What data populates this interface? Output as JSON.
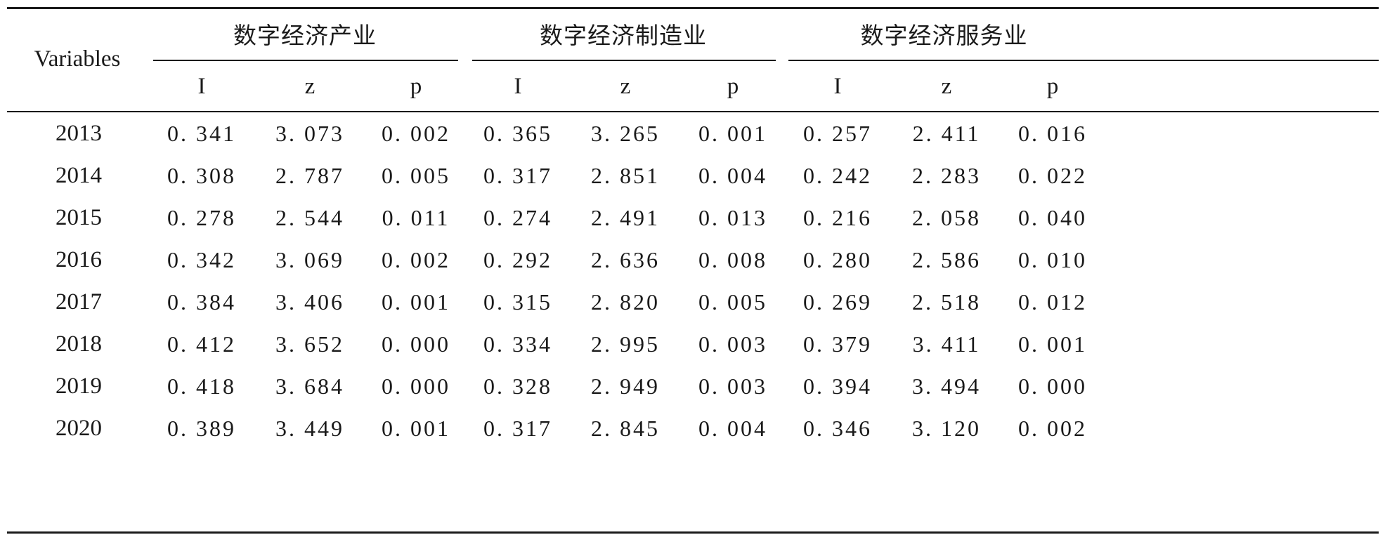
{
  "table": {
    "row_header": "Variables",
    "groups": [
      "数字经济产业",
      "数字经济制造业",
      "数字经济服务业"
    ],
    "subheaders": [
      "I",
      "z",
      "p"
    ],
    "rows": [
      {
        "year": "2013",
        "values": [
          "0. 341",
          "3. 073",
          "0. 002",
          "0. 365",
          "3. 265",
          "0. 001",
          "0. 257",
          "2. 411",
          "0. 016"
        ]
      },
      {
        "year": "2014",
        "values": [
          "0. 308",
          "2. 787",
          "0. 005",
          "0. 317",
          "2. 851",
          "0. 004",
          "0. 242",
          "2. 283",
          "0. 022"
        ]
      },
      {
        "year": "2015",
        "values": [
          "0. 278",
          "2. 544",
          "0. 011",
          "0. 274",
          "2. 491",
          "0. 013",
          "0. 216",
          "2. 058",
          "0. 040"
        ]
      },
      {
        "year": "2016",
        "values": [
          "0. 342",
          "3. 069",
          "0. 002",
          "0. 292",
          "2. 636",
          "0. 008",
          "0. 280",
          "2. 586",
          "0. 010"
        ]
      },
      {
        "year": "2017",
        "values": [
          "0. 384",
          "3. 406",
          "0. 001",
          "0. 315",
          "2. 820",
          "0. 005",
          "0. 269",
          "2. 518",
          "0. 012"
        ]
      },
      {
        "year": "2018",
        "values": [
          "0. 412",
          "3. 652",
          "0. 000",
          "0. 334",
          "2. 995",
          "0. 003",
          "0. 379",
          "3. 411",
          "0. 001"
        ]
      },
      {
        "year": "2019",
        "values": [
          "0. 418",
          "3. 684",
          "0. 000",
          "0. 328",
          "2. 949",
          "0. 003",
          "0. 394",
          "3. 494",
          "0. 000"
        ]
      },
      {
        "year": "2020",
        "values": [
          "0. 389",
          "3. 449",
          "0. 001",
          "0. 317",
          "2. 845",
          "0. 004",
          "0. 346",
          "3. 120",
          "0. 002"
        ]
      }
    ]
  }
}
